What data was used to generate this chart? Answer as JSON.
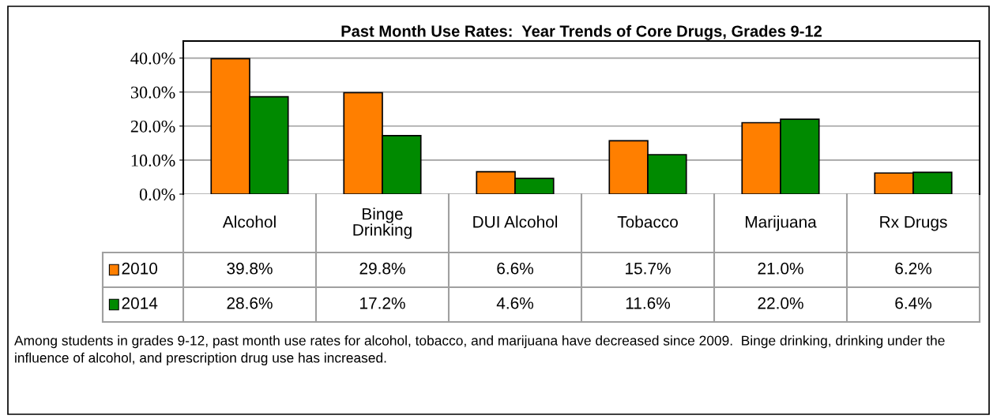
{
  "chart_data": {
    "type": "bar",
    "title": "Past Month Use Rates:  Year Trends of Core Drugs, Grades 9-12",
    "categories": [
      "Alcohol",
      "Binge\nDrinking",
      "DUI Alcohol",
      "Tobacco",
      "Marijuana",
      "Rx Drugs"
    ],
    "series": [
      {
        "name": "2010",
        "color": "#ff7f00",
        "values": [
          39.8,
          29.8,
          6.6,
          15.7,
          21.0,
          6.2
        ],
        "value_labels": [
          "39.8%",
          "29.8%",
          "6.6%",
          "15.7%",
          "21.0%",
          "6.2%"
        ]
      },
      {
        "name": "2014",
        "color": "#008a00",
        "values": [
          28.6,
          17.2,
          4.6,
          11.6,
          22.0,
          6.4
        ],
        "value_labels": [
          "28.6%",
          "17.2%",
          "4.6%",
          "11.6%",
          "22.0%",
          "6.4%"
        ]
      }
    ],
    "ylim": [
      0,
      45
    ],
    "yticks": [
      {
        "value": 0,
        "label": "0.0%"
      },
      {
        "value": 10,
        "label": "10.0%"
      },
      {
        "value": 20,
        "label": "20.0%"
      },
      {
        "value": 30,
        "label": "30.0%"
      },
      {
        "value": 40,
        "label": "40.0%"
      }
    ],
    "grid": "y",
    "legend": "bottom",
    "annotations": [
      "Among students in grades 9-12, past month use rates for alcohol, tobacco, and marijuana have decreased since 2009.  Binge drinking, drinking under the influence of alcohol, and prescription drug use has increased."
    ]
  }
}
